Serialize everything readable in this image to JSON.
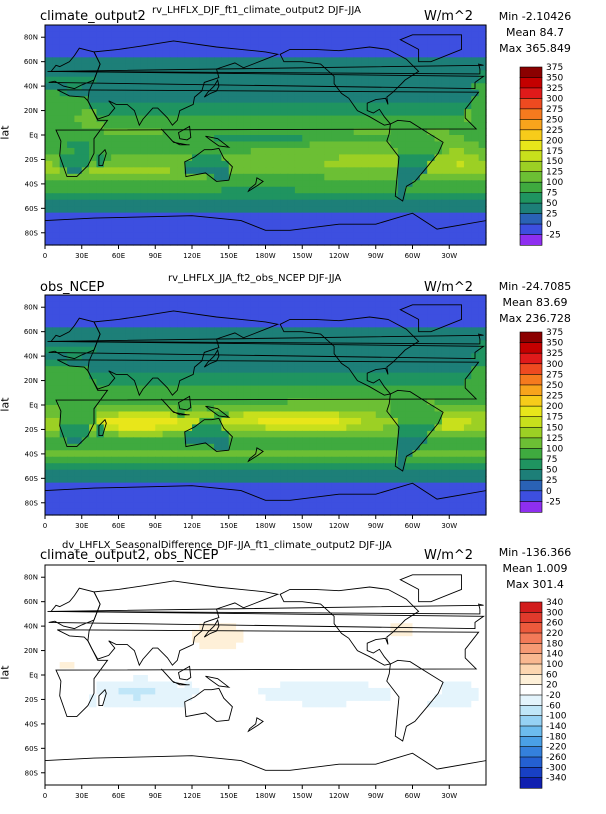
{
  "chart_data": [
    {
      "type": "heatmap",
      "title": "rv_LHFLX_DJF_ft1_climate_output2  DJF-JJA",
      "left_label": "climate_output2",
      "units": "W/m^2",
      "ylabel": "lat",
      "stats": {
        "min": "Min -2.10426",
        "mean": "Mean 84.7",
        "max": "Max 365.849"
      },
      "x_ticks": [
        "0",
        "30E",
        "60E",
        "90E",
        "120E",
        "150E",
        "180W",
        "150W",
        "120W",
        "90W",
        "60W",
        "30W"
      ],
      "y_ticks": [
        "80N",
        "60N",
        "40N",
        "20N",
        "Eq",
        "20S",
        "40S",
        "60S",
        "80S"
      ],
      "colorbar": {
        "levels": [
          "375",
          "350",
          "325",
          "300",
          "275",
          "250",
          "225",
          "200",
          "175",
          "150",
          "125",
          "100",
          "75",
          "50",
          "25",
          "0",
          "-25"
        ],
        "colors": [
          "#8b0000",
          "#c40000",
          "#e01a1a",
          "#ee4a20",
          "#f57a1e",
          "#f8a41c",
          "#f7cc1a",
          "#e8e61a",
          "#c8e01c",
          "#9cd024",
          "#6cbf34",
          "#3faa3f",
          "#1f9460",
          "#1d7f78",
          "#2a62b5",
          "#3d4fe0",
          "#8e2ff0"
        ]
      }
    },
    {
      "type": "heatmap",
      "title": "rv_LHFLX_JJA_ft2_obs_NCEP  DJF-JJA",
      "left_label": "obs_NCEP",
      "units": "W/m^2",
      "ylabel": "lat",
      "stats": {
        "min": "Min -24.7085",
        "mean": "Mean 83.69",
        "max": "Max 236.728"
      },
      "x_ticks": [
        "0",
        "30E",
        "60E",
        "90E",
        "120E",
        "150E",
        "180W",
        "150W",
        "120W",
        "90W",
        "60W",
        "30W"
      ],
      "y_ticks": [
        "80N",
        "60N",
        "40N",
        "20N",
        "Eq",
        "20S",
        "40S",
        "60S",
        "80S"
      ],
      "colorbar": {
        "levels": [
          "375",
          "350",
          "325",
          "300",
          "275",
          "250",
          "225",
          "200",
          "175",
          "150",
          "125",
          "100",
          "75",
          "50",
          "25",
          "0",
          "-25"
        ],
        "colors": [
          "#8b0000",
          "#c40000",
          "#e01a1a",
          "#ee4a20",
          "#f57a1e",
          "#f8a41c",
          "#f7cc1a",
          "#e8e61a",
          "#c8e01c",
          "#9cd024",
          "#6cbf34",
          "#3faa3f",
          "#1f9460",
          "#1d7f78",
          "#2a62b5",
          "#3d4fe0",
          "#8e2ff0"
        ]
      }
    },
    {
      "type": "heatmap",
      "title": "dv_LHFLX_SeasonalDifference_DJF-JJA_ft1_climate_output2  DJF-JJA",
      "left_label": "climate_output2, obs_NCEP",
      "units": "W/m^2",
      "ylabel": "lat",
      "stats": {
        "min": "Min -136.366",
        "mean": "Mean 1.009",
        "max": "Max 301.4"
      },
      "x_ticks": [
        "0",
        "30E",
        "60E",
        "90E",
        "120E",
        "150E",
        "180W",
        "150W",
        "120W",
        "90W",
        "60W",
        "30W"
      ],
      "y_ticks": [
        "80N",
        "60N",
        "40N",
        "20N",
        "Eq",
        "20S",
        "40S",
        "60S",
        "80S"
      ],
      "colorbar": {
        "levels": [
          "340",
          "300",
          "260",
          "220",
          "180",
          "140",
          "100",
          "60",
          "20",
          "-20",
          "-60",
          "-100",
          "-140",
          "-180",
          "-220",
          "-260",
          "-300",
          "-340"
        ],
        "colors": [
          "#d21c1c",
          "#e03a2c",
          "#ec5a3c",
          "#f27a58",
          "#f69a74",
          "#f9b890",
          "#fcd6b0",
          "#fef0d8",
          "#ffffff",
          "#e4f4fc",
          "#c0e6f8",
          "#96d2f4",
          "#6cbcee",
          "#4aa0e6",
          "#3480dc",
          "#2460d2",
          "#1840c4",
          "#1020b0"
        ]
      }
    }
  ]
}
